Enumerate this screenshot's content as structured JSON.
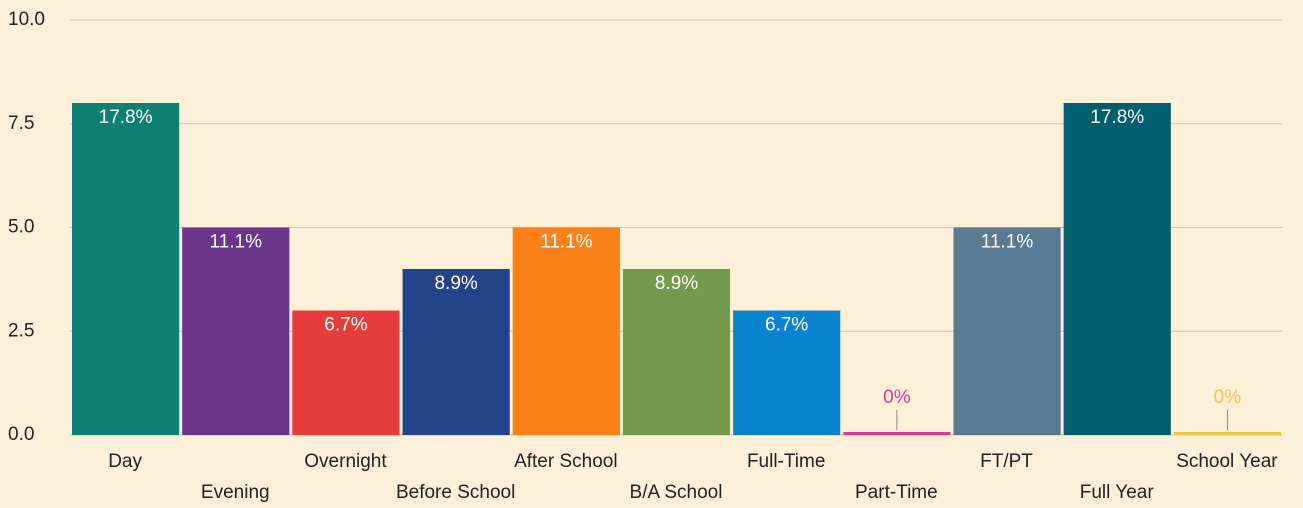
{
  "chart_data": {
    "type": "bar",
    "categories": [
      "Day",
      "Evening",
      "Overnight",
      "Before School",
      "After School",
      "B/A School",
      "Full-Time",
      "Part-Time",
      "FT/PT",
      "Full Year",
      "School Year"
    ],
    "values": [
      8,
      5,
      3,
      4,
      5,
      4,
      3,
      0,
      5,
      8,
      0
    ],
    "percent_labels": [
      "17.8%",
      "11.1%",
      "6.7%",
      "8.9%",
      "11.1%",
      "8.9%",
      "6.7%",
      "0%",
      "11.1%",
      "17.8%",
      "0%"
    ],
    "colors": [
      "#0e7f73",
      "#6a358a",
      "#e63c3c",
      "#24448a",
      "#fb8118",
      "#739a4d",
      "#0a84d0",
      "#d43d8f",
      "#5a7a93",
      "#005f6f",
      "#f4c245"
    ],
    "ylim": [
      0,
      10
    ],
    "yticks": [
      {
        "value": 0,
        "label": "0.0"
      },
      2.5,
      {
        "value": 5,
        "label": "5.0"
      },
      7.5,
      {
        "value": 10,
        "label": "10.0"
      }
    ],
    "grid": true
  }
}
